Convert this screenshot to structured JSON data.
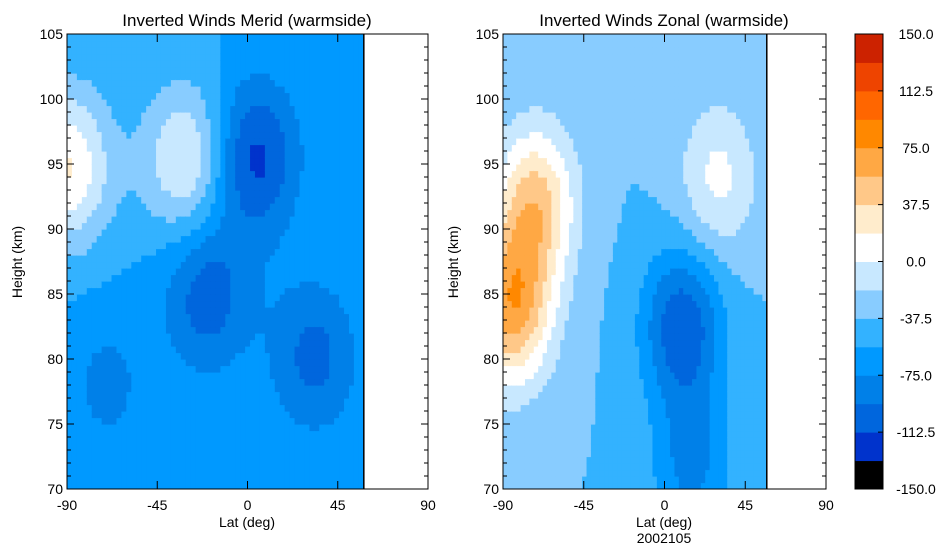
{
  "chart_data": [
    {
      "type": "heatmap",
      "subtype": "filled-contour",
      "title": "Inverted Winds Merid (warmside)",
      "xlabel": "Lat (deg)",
      "ylabel": "Height (km)",
      "xlim": [
        -90,
        90
      ],
      "ylim": [
        70,
        105
      ],
      "xticks": [
        "-90",
        "-45",
        "0",
        "45",
        "90"
      ],
      "yticks": [
        "70",
        "75",
        "80",
        "85",
        "90",
        "95",
        "100",
        "105"
      ],
      "data_extent_lat": [
        -90,
        58
      ],
      "background_level": -56.25,
      "features": [
        {
          "lat": -90,
          "height": 94.8,
          "value": 20,
          "label": "weak positive at south edge"
        },
        {
          "lat": -30,
          "height": 95.3,
          "value": 5,
          "label": "positive maximum"
        },
        {
          "lat": 3,
          "height": 95.5,
          "value": -120,
          "label": "strong negative core"
        },
        {
          "lat": -20,
          "height": 85,
          "value": -105,
          "label": "negative core"
        },
        {
          "lat": 33,
          "height": 80.2,
          "value": -100,
          "label": "negative core"
        },
        {
          "lat": -70,
          "height": 78,
          "value": -80,
          "label": "negative region"
        }
      ]
    },
    {
      "type": "heatmap",
      "subtype": "filled-contour",
      "title": "Inverted Winds Zonal (warmside)",
      "xlabel": "Lat (deg)",
      "xlabel2": "2002105",
      "ylabel": "Height (km)",
      "xlim": [
        -90,
        90
      ],
      "ylim": [
        70,
        105
      ],
      "xticks": [
        "-90",
        "-45",
        "0",
        "45",
        "90"
      ],
      "yticks": [
        "70",
        "75",
        "80",
        "85",
        "90",
        "95",
        "100",
        "105"
      ],
      "data_extent_lat": [
        -90,
        57
      ],
      "background_level": -37.5,
      "features": [
        {
          "lat": -85,
          "height": 84,
          "value": 65,
          "label": "positive maximum"
        },
        {
          "lat": -72,
          "height": 92,
          "value": 45,
          "label": "positive lobe"
        },
        {
          "lat": 30,
          "height": 94,
          "value": 5,
          "label": "weak positive"
        },
        {
          "lat": 10,
          "height": 82.5,
          "value": -110,
          "label": "negative core"
        },
        {
          "lat": 15,
          "height": 72,
          "value": -80,
          "label": "negative tongue"
        }
      ]
    }
  ],
  "colorbar": {
    "labels": [
      "150.0",
      "112.5",
      "75.0",
      "37.5",
      "0.0",
      "-37.5",
      "-75.0",
      "-112.5",
      "-150.0"
    ],
    "range": [
      -150,
      150
    ],
    "levels": [
      -150,
      -131.25,
      -112.5,
      -93.75,
      -75,
      -56.25,
      -37.5,
      -18.75,
      0,
      18.75,
      37.5,
      56.25,
      75,
      93.75,
      112.5,
      131.25,
      150
    ],
    "colors": [
      "#000000",
      "#0033cc",
      "#0066dd",
      "#0080e8",
      "#0099ff",
      "#33b2ff",
      "#88ccff",
      "#c8e8ff",
      "#ffffff",
      "#ffeccc",
      "#ffc888",
      "#ffa844",
      "#ff8800",
      "#ff6600",
      "#ee4400",
      "#cc2200"
    ]
  }
}
